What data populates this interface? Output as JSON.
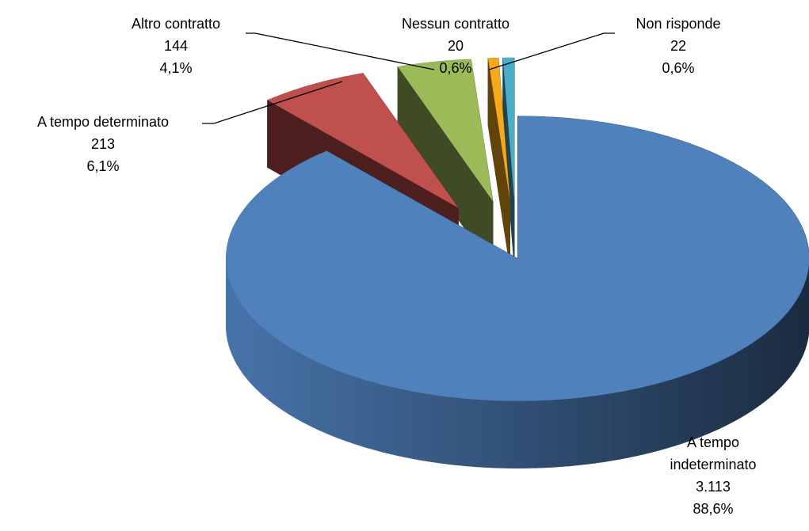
{
  "chart_data": {
    "type": "pie",
    "categories": [
      "A tempo indeterminato",
      "A tempo determinato",
      "Altro contratto",
      "Nessun contratto",
      "Non risponde"
    ],
    "values": [
      3113,
      213,
      144,
      20,
      22
    ],
    "value_labels": [
      "3.113",
      "213",
      "144",
      "20",
      "22"
    ],
    "percentages": [
      88.6,
      6.1,
      4.1,
      0.6,
      0.6
    ],
    "percentage_labels": [
      "88,6%",
      "6,1%",
      "4,1%",
      "0,6%",
      "0,6%"
    ],
    "colors": [
      "#4f81bd",
      "#c0504d",
      "#9bbb59",
      "#f5a818",
      "#4bacc6"
    ]
  }
}
